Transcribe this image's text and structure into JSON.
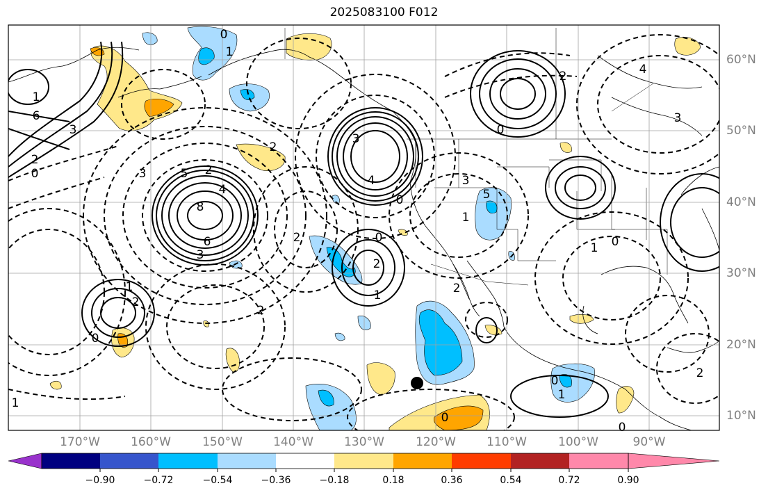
{
  "title": "2025083100 F012",
  "lat_labels": [
    "60°N",
    "50°N",
    "40°N",
    "30°N",
    "20°N",
    "10°N"
  ],
  "lon_labels": [
    "170°W",
    "160°W",
    "150°W",
    "140°W",
    "130°W",
    "120°W",
    "110°W",
    "100°W",
    "90°W"
  ],
  "colorbar": {
    "ticks": [
      "−0.90",
      "−0.72",
      "−0.54",
      "−0.36",
      "−0.18",
      "0.18",
      "0.36",
      "0.54",
      "0.72",
      "0.90"
    ],
    "colors": [
      "#9932cc",
      "#000080",
      "#3655cc",
      "#00bfff",
      "#aadcff",
      "#ffffff",
      "#ffe88a",
      "#ffa500",
      "#ff3c00",
      "#b22222",
      "#ff88aa"
    ]
  },
  "contour_labels": [
    {
      "id": "c-0-top",
      "text": "0"
    },
    {
      "id": "c-1-alaska",
      "text": "1"
    },
    {
      "id": "c-2-bc",
      "text": "2"
    },
    {
      "id": "c-4-east",
      "text": "4"
    },
    {
      "id": "c-3-east",
      "text": "3"
    },
    {
      "id": "c-6-west",
      "text": "6"
    },
    {
      "id": "c-3-west",
      "text": "3"
    },
    {
      "id": "c-1-west",
      "text": "1"
    },
    {
      "id": "c-2-west",
      "text": "2"
    },
    {
      "id": "c-0-west",
      "text": "0"
    },
    {
      "id": "c-3-a",
      "text": "3"
    },
    {
      "id": "c-5-a",
      "text": "5"
    },
    {
      "id": "c-2-a",
      "text": "2"
    },
    {
      "id": "c-4-a",
      "text": "4"
    },
    {
      "id": "c-8-a",
      "text": "8"
    },
    {
      "id": "c-6-a",
      "text": "6"
    },
    {
      "id": "c-3-b",
      "text": "3"
    },
    {
      "id": "c-2-mid",
      "text": "2"
    },
    {
      "id": "c-3-coast",
      "text": "3"
    },
    {
      "id": "c-4-coast",
      "text": "4"
    },
    {
      "id": "c-0-coast",
      "text": "0"
    },
    {
      "id": "c-3-inland",
      "text": "3"
    },
    {
      "id": "c-5-inland",
      "text": "5"
    },
    {
      "id": "c-1-inland",
      "text": "1"
    },
    {
      "id": "c-0-cent",
      "text": "0"
    },
    {
      "id": "c-2-cent",
      "text": "2"
    },
    {
      "id": "c-1-cent",
      "text": "1"
    },
    {
      "id": "c-2-mx",
      "text": "2"
    },
    {
      "id": "c-0-plains",
      "text": "0"
    },
    {
      "id": "c-1-plains",
      "text": "1"
    },
    {
      "id": "c-0-canada",
      "text": "0"
    },
    {
      "id": "c-2-canada",
      "text": "2"
    },
    {
      "id": "c-1-sw",
      "text": "1"
    },
    {
      "id": "c-2-sw",
      "text": "2"
    },
    {
      "id": "c-0-sw",
      "text": "0"
    },
    {
      "id": "c-2-s",
      "text": "2"
    },
    {
      "id": "c-1-far",
      "text": "1"
    },
    {
      "id": "c-0-bot",
      "text": "0"
    },
    {
      "id": "c-0-cam",
      "text": "0"
    },
    {
      "id": "c-1-cam",
      "text": "1"
    },
    {
      "id": "c-2-carib",
      "text": "2"
    },
    {
      "id": "c-0-gulf",
      "text": "0"
    }
  ]
}
